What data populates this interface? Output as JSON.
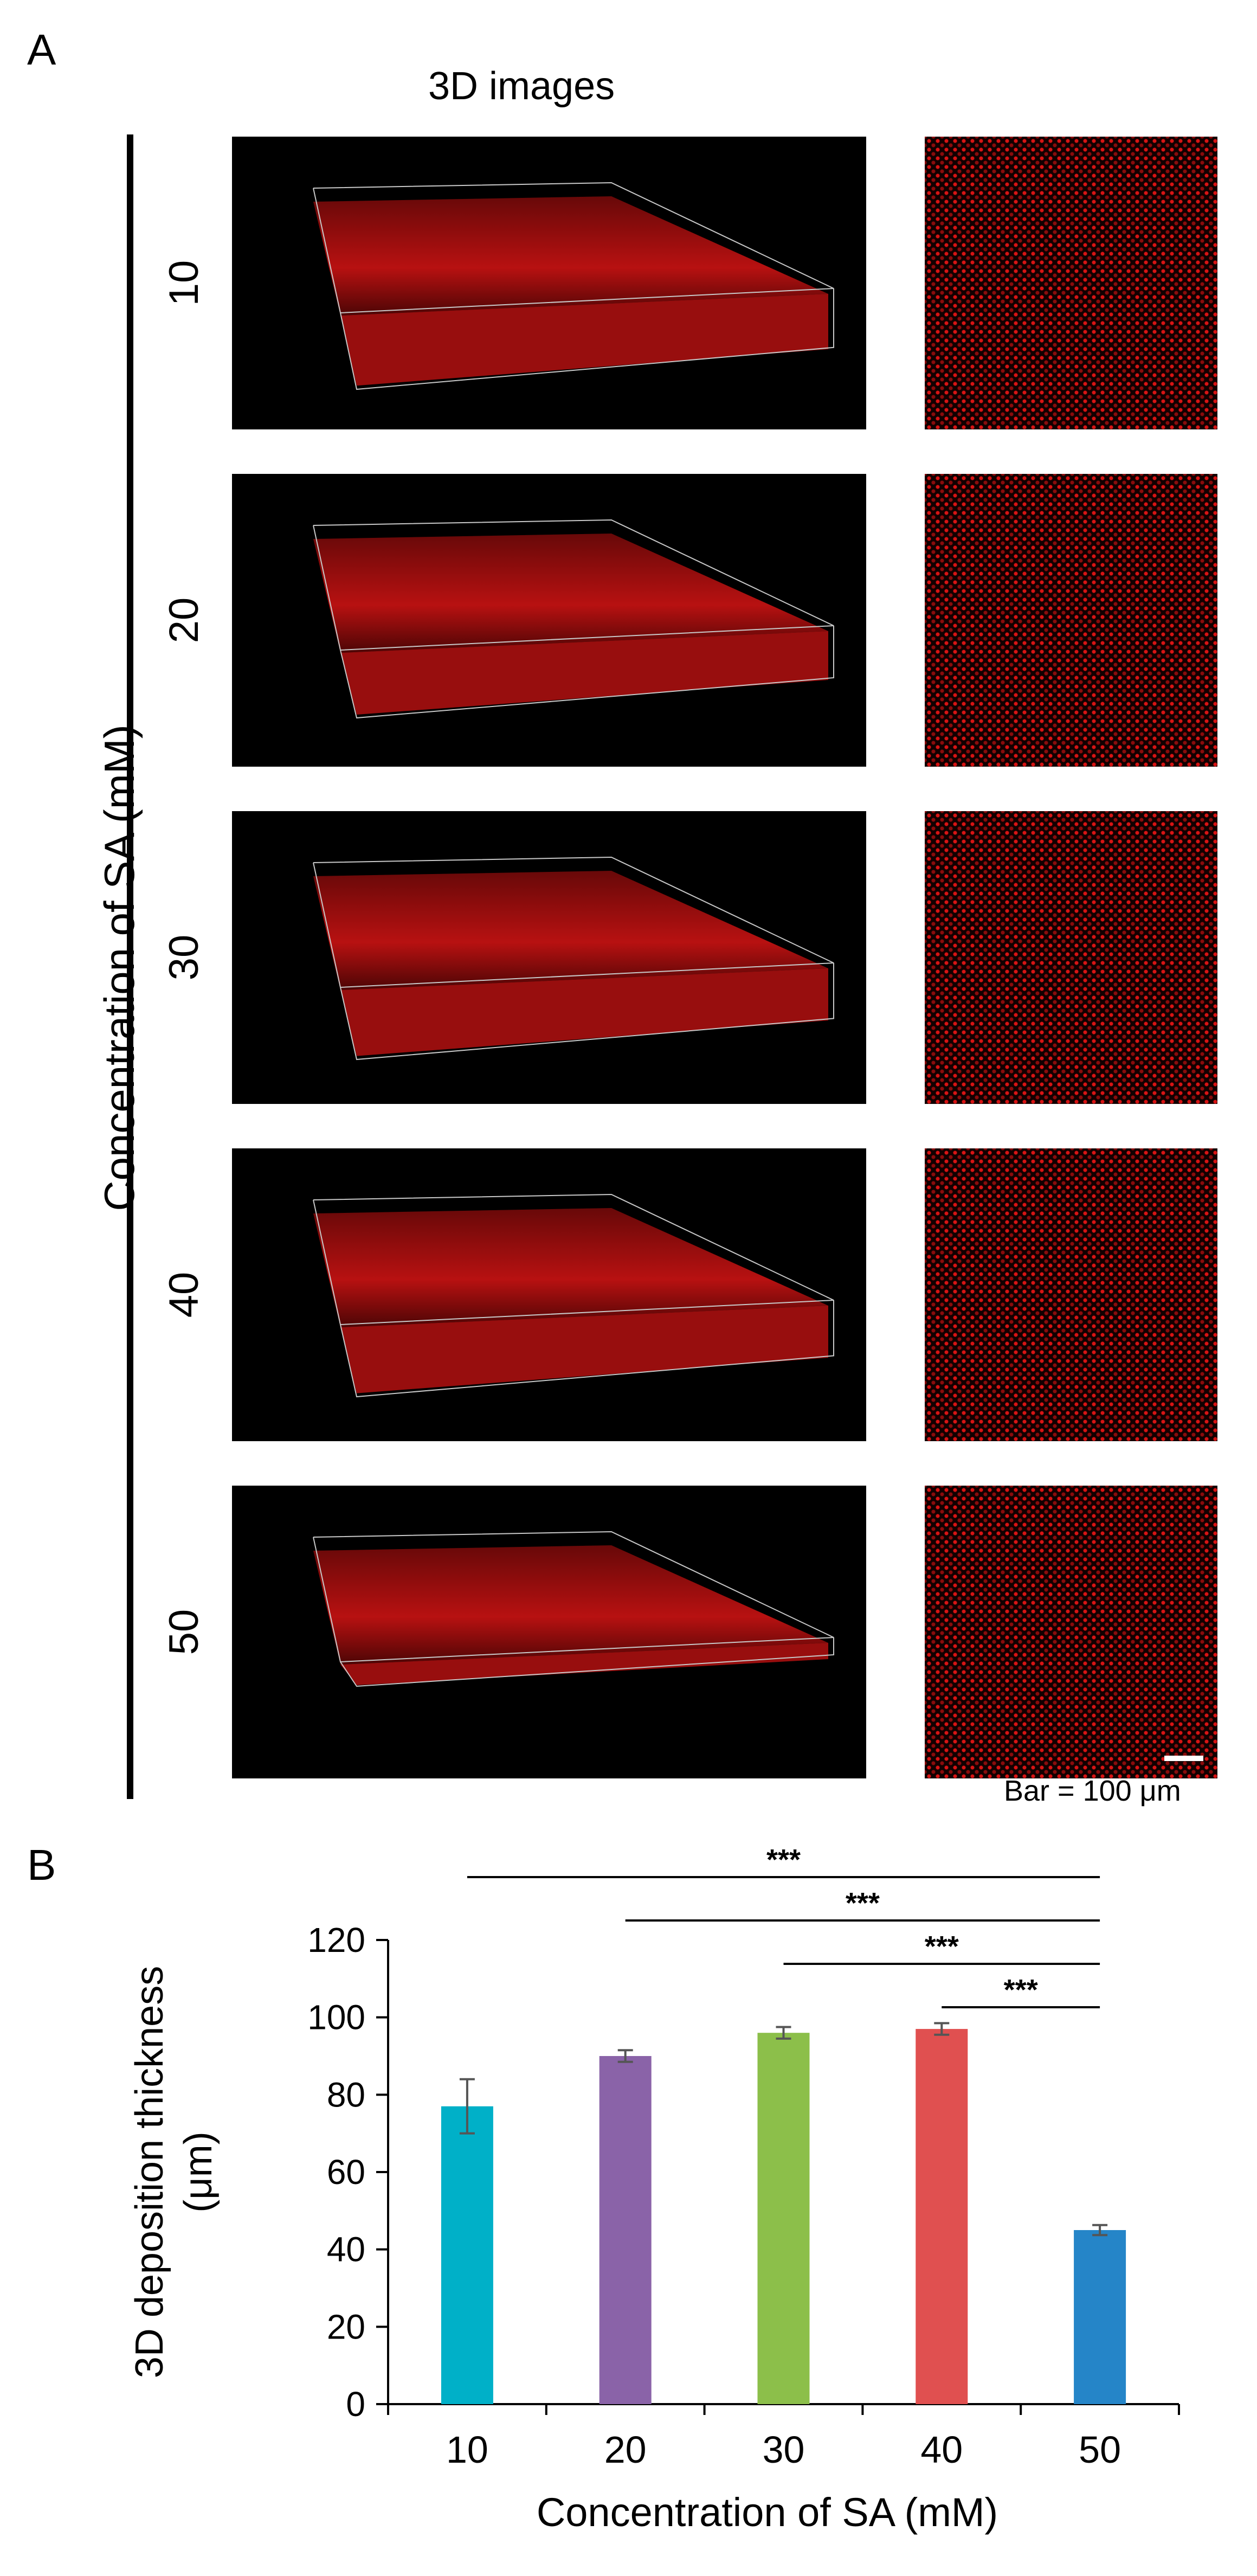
{
  "panel_a": {
    "letter": "A",
    "column_header": "3D images",
    "side_label": "Concentration of SA (mM)",
    "rows": [
      {
        "label": "10"
      },
      {
        "label": "20"
      },
      {
        "label": "30"
      },
      {
        "label": "40"
      },
      {
        "label": "50"
      }
    ],
    "scale_bar_text": "Bar = 100 μm",
    "image_colors": {
      "background": "#000000",
      "signal": "#d81414"
    }
  },
  "panel_b": {
    "letter": "B"
  },
  "chart_data": {
    "type": "bar",
    "categories": [
      "10",
      "20",
      "30",
      "40",
      "50"
    ],
    "values": [
      77,
      90,
      96,
      97,
      45
    ],
    "errors": [
      7,
      1.5,
      1.5,
      1.5,
      1.3
    ],
    "colors": [
      "#00b0c8",
      "#8a63a8",
      "#8cbf4a",
      "#e05050",
      "#2585c8"
    ],
    "xlabel": "Concentration of SA (mM)",
    "ylabel_lines": [
      "3D deposition thickness",
      "(μm)"
    ],
    "ylim": [
      0,
      120
    ],
    "yticks": [
      0,
      20,
      40,
      60,
      80,
      100,
      120
    ],
    "grid": false,
    "significance": [
      {
        "from": "10",
        "to": "50",
        "label": "***"
      },
      {
        "from": "20",
        "to": "50",
        "label": "***"
      },
      {
        "from": "30",
        "to": "50",
        "label": "***"
      },
      {
        "from": "40",
        "to": "50",
        "label": "***"
      }
    ]
  }
}
